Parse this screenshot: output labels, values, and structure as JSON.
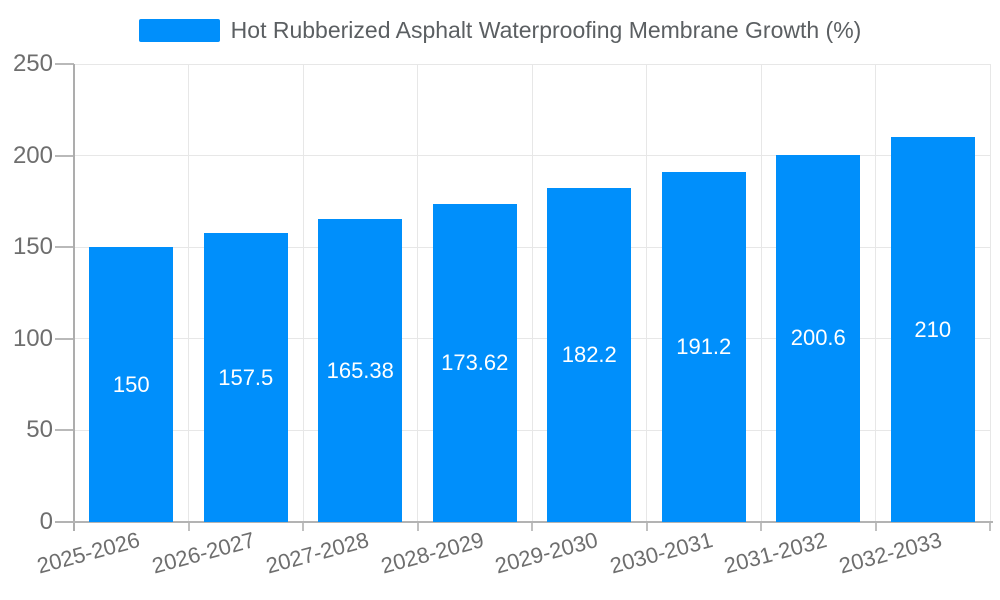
{
  "legend": {
    "label": "Hot Rubberized Asphalt Waterproofing Membrane Growth (%)",
    "swatch_color": "#008FFB"
  },
  "chart_data": {
    "type": "bar",
    "title": "Hot Rubberized Asphalt Waterproofing Membrane Growth (%)",
    "categories": [
      "2025-2026",
      "2026-2027",
      "2027-2028",
      "2028-2029",
      "2029-2030",
      "2030-2031",
      "2031-2032",
      "2032-2033"
    ],
    "series": [
      {
        "name": "Hot Rubberized Asphalt Waterproofing Membrane Growth (%)",
        "values": [
          150,
          157.5,
          165.38,
          173.62,
          182.2,
          191.2,
          200.6,
          210
        ]
      }
    ],
    "data_labels": [
      "150",
      "157.5",
      "165.38",
      "173.62",
      "182.2",
      "191.2",
      "200.6",
      "210"
    ],
    "xlabel": "",
    "ylabel": "",
    "ylim": [
      0,
      250
    ],
    "yticks": [
      0,
      50,
      100,
      150,
      200,
      250
    ],
    "grid": "horizontal and vertical light gray gridlines",
    "legend_position": "top-center",
    "x_label_rotation_deg": -15,
    "colors": {
      "bar": "#008FFB",
      "data_label": "#ffffff",
      "axis_label": "#6e6e6e",
      "legend_text": "#5b5f62",
      "gridline": "#e7e7e7",
      "axis_line": "#b3b3b3",
      "background": "#ffffff"
    }
  }
}
